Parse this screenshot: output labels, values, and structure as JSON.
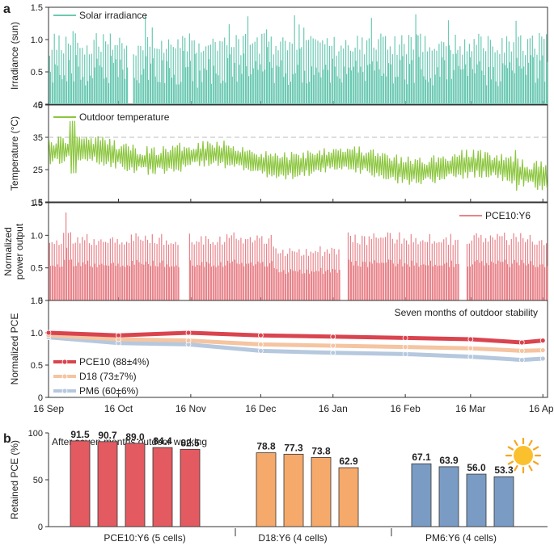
{
  "panel_letters": {
    "a": "a",
    "b": "b"
  },
  "chart_data": [
    {
      "type": "line",
      "title": "",
      "legend": "Solar irradiance",
      "legend_position": "top-left",
      "ylabel": "Irradiance (sun)",
      "ylim": [
        0,
        1.5
      ],
      "yticks": [
        "0",
        "0.5",
        "1.0",
        "1.5"
      ],
      "color": "#6cc9b3",
      "typical_daily_peak": 1.0,
      "max_value": 1.42
    },
    {
      "type": "line",
      "legend": "Outdoor temperature",
      "legend_position": "top-left",
      "ylabel": "Temperature (°C)",
      "ylim": [
        15,
        45
      ],
      "yticks": [
        "15",
        "25",
        "35",
        "45"
      ],
      "reference_line": 35,
      "color": "#8cc63f",
      "trend_start_mean": 30,
      "trend_end_mean": 24,
      "max_value": 43
    },
    {
      "type": "line",
      "legend": "PCE10:Y6",
      "legend_position": "top-right",
      "ylabel": "Normalized power output",
      "ylabel_lines": [
        "Normalized",
        "power output"
      ],
      "ylim": [
        0,
        1.5
      ],
      "yticks": [
        "0",
        "0.5",
        "1.0",
        "1.5"
      ],
      "color": "#e8838a",
      "typical_daily_peak": 1.0
    },
    {
      "type": "line",
      "annotation": "Seven months of outdoor stability",
      "ylabel": "Normalized PCE",
      "ylim": [
        0,
        1.5
      ],
      "yticks": [
        "0",
        "0.5",
        "1.0",
        "1.5"
      ],
      "xticks": [
        "16 Sep",
        "16 Oct",
        "16 Nov",
        "16 Dec",
        "16 Jan",
        "16 Feb",
        "16 Mar",
        "16 Apr"
      ],
      "series": [
        {
          "name": "PCE10 (88±4%)",
          "color": "#d9444f",
          "x_days": [
            0,
            30,
            60,
            91,
            122,
            153,
            181,
            203,
            212
          ],
          "values": [
            1.0,
            0.96,
            1.0,
            0.96,
            0.94,
            0.92,
            0.9,
            0.85,
            0.88
          ]
        },
        {
          "name": "D18 (73±7%)",
          "color": "#f5c4a1",
          "x_days": [
            0,
            30,
            60,
            91,
            122,
            153,
            181,
            203,
            212
          ],
          "values": [
            0.96,
            0.9,
            0.88,
            0.82,
            0.8,
            0.78,
            0.76,
            0.72,
            0.73
          ]
        },
        {
          "name": "PM6 (60±6%)",
          "color": "#b5c8de",
          "x_days": [
            0,
            30,
            60,
            91,
            122,
            153,
            181,
            203,
            212
          ],
          "values": [
            0.93,
            0.84,
            0.82,
            0.72,
            0.69,
            0.67,
            0.63,
            0.58,
            0.6
          ]
        }
      ]
    },
    {
      "type": "bar",
      "annotation": "After seven months outdoor working",
      "ylabel": "Retained PCE (%)",
      "ylim": [
        0,
        100
      ],
      "yticks": [
        "0",
        "50",
        "100"
      ],
      "groups": [
        {
          "label": "PCE10:Y6 (5 cells)",
          "color": "#e35a61",
          "values": [
            91.5,
            90.7,
            89.0,
            84.4,
            82.5
          ],
          "labels": [
            "91.5",
            "90.7",
            "89.0",
            "84.4",
            "82.5"
          ]
        },
        {
          "label": "D18:Y6 (4 cells)",
          "color": "#f5a96a",
          "values": [
            78.8,
            77.3,
            73.8,
            62.9
          ],
          "labels": [
            "78.8",
            "77.3",
            "73.8",
            "62.9"
          ]
        },
        {
          "label": "PM6:Y6 (4 cells)",
          "color": "#7a9cc4",
          "values": [
            67.1,
            63.9,
            56.0,
            53.3
          ],
          "labels": [
            "67.1",
            "63.9",
            "56.0",
            "53.3"
          ]
        }
      ]
    }
  ]
}
